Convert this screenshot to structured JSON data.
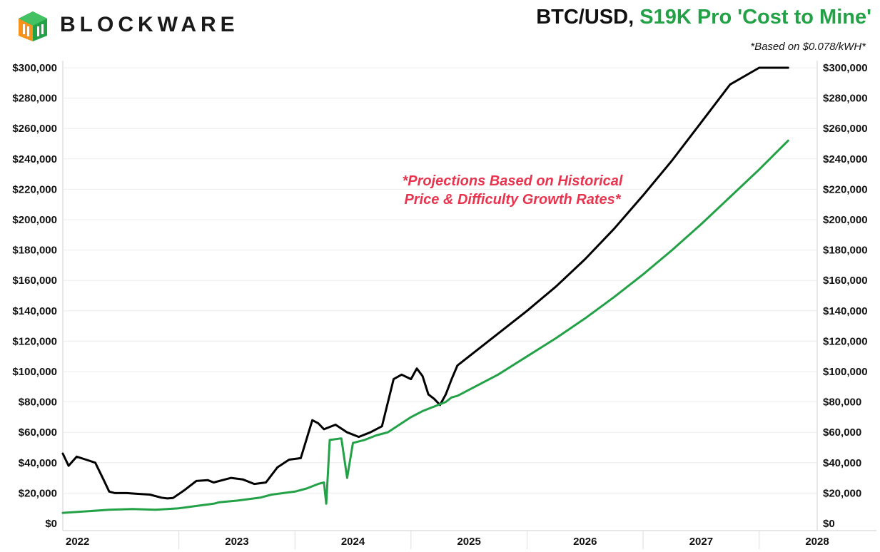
{
  "header": {
    "brand": "BLOCKWARE",
    "title_part1": "BTC/USD,",
    "title_part2": "S19K Pro 'Cost to Mine'",
    "subtitle": "*Based on $0.078/kWH*",
    "brand_colors": [
      "#f7931a",
      "#22a146"
    ]
  },
  "chart_data": {
    "type": "line",
    "title": "BTC/USD, S19K Pro 'Cost to Mine'",
    "subtitle": "*Based on $0.078/kWH*",
    "xlabel": "",
    "ylabel": "",
    "x_ticks": [
      "2022",
      "2023",
      "2024",
      "2025",
      "2026",
      "2027",
      "2028"
    ],
    "xlim": [
      2022.0,
      2028.5
    ],
    "y_ticks": [
      "$0",
      "$20,000",
      "$40,000",
      "$60,000",
      "$80,000",
      "$100,000",
      "$120,000",
      "$140,000",
      "$160,000",
      "$180,000",
      "$200,000",
      "$220,000",
      "$240,000",
      "$260,000",
      "$280,000",
      "$300,000"
    ],
    "ylim": [
      0,
      300000
    ],
    "grid": true,
    "legend": "none",
    "annotation": [
      "*Projections Based on Historical",
      "Price & Difficulty Growth Rates*"
    ],
    "series": [
      {
        "color": "#000000",
        "x": [
          2022.0,
          2022.05,
          2022.12,
          2022.2,
          2022.28,
          2022.35,
          2022.4,
          2022.45,
          2022.55,
          2022.65,
          2022.75,
          2022.85,
          2022.9,
          2022.95,
          2023.05,
          2023.15,
          2023.25,
          2023.3,
          2023.45,
          2023.55,
          2023.65,
          2023.75,
          2023.85,
          2023.95,
          2024.05,
          2024.15,
          2024.2,
          2024.25,
          2024.35,
          2024.45,
          2024.55,
          2024.65,
          2024.75,
          2024.85,
          2024.92,
          2025.0,
          2025.05,
          2025.1,
          2025.15,
          2025.2,
          2025.25,
          2025.3,
          2025.35,
          2025.4,
          2025.5,
          2025.75,
          2026.0,
          2026.25,
          2026.5,
          2026.75,
          2027.0,
          2027.25,
          2027.5,
          2027.75,
          2028.0,
          2028.25
        ],
        "values": [
          46000,
          38000,
          44000,
          42000,
          40000,
          29000,
          21000,
          20000,
          20000,
          19500,
          19000,
          17000,
          16500,
          16800,
          22000,
          28000,
          28500,
          27000,
          30000,
          29000,
          26000,
          27000,
          37000,
          42000,
          43000,
          68000,
          66000,
          62000,
          65000,
          60000,
          57000,
          60000,
          64000,
          95000,
          98000,
          95000,
          102000,
          97000,
          85000,
          82000,
          78000,
          85000,
          95000,
          104000,
          110000,
          125000,
          140000,
          156000,
          174000,
          194000,
          216000,
          239000,
          264000,
          289000,
          300000,
          300000
        ]
      },
      {
        "color": "#22a146",
        "x": [
          2022.0,
          2022.2,
          2022.4,
          2022.6,
          2022.8,
          2023.0,
          2023.2,
          2023.3,
          2023.35,
          2023.5,
          2023.7,
          2023.8,
          2023.9,
          2024.0,
          2024.1,
          2024.2,
          2024.25,
          2024.27,
          2024.3,
          2024.4,
          2024.45,
          2024.5,
          2024.6,
          2024.7,
          2024.8,
          2024.9,
          2025.0,
          2025.1,
          2025.2,
          2025.3,
          2025.35,
          2025.4,
          2025.5,
          2025.75,
          2026.0,
          2026.25,
          2026.5,
          2026.75,
          2027.0,
          2027.25,
          2027.5,
          2027.75,
          2028.0,
          2028.25
        ],
        "values": [
          7000,
          8000,
          9000,
          9500,
          9000,
          10000,
          12000,
          13000,
          14000,
          15000,
          17000,
          19000,
          20000,
          21000,
          23000,
          26000,
          27000,
          13000,
          55000,
          56000,
          30000,
          53000,
          55000,
          58000,
          60000,
          65000,
          70000,
          74000,
          77000,
          80000,
          83000,
          84000,
          88000,
          98000,
          110000,
          122000,
          135000,
          149000,
          164000,
          180000,
          197000,
          215000,
          233000,
          252000
        ]
      }
    ]
  }
}
